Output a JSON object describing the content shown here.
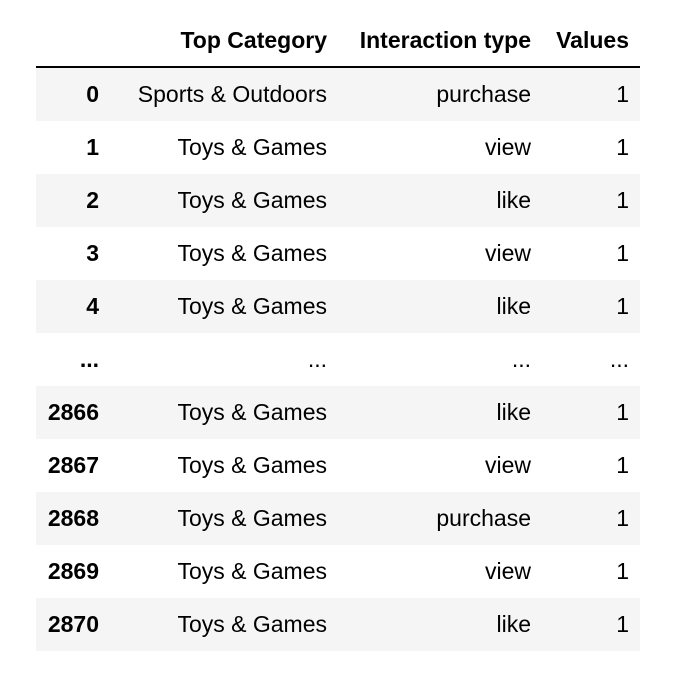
{
  "table": {
    "columns": [
      "",
      "Top Category",
      "Interaction type",
      "Values"
    ],
    "rows": [
      {
        "index": "0",
        "top_category": "Sports & Outdoors",
        "interaction_type": "purchase",
        "values": "1"
      },
      {
        "index": "1",
        "top_category": "Toys & Games",
        "interaction_type": "view",
        "values": "1"
      },
      {
        "index": "2",
        "top_category": "Toys & Games",
        "interaction_type": "like",
        "values": "1"
      },
      {
        "index": "3",
        "top_category": "Toys & Games",
        "interaction_type": "view",
        "values": "1"
      },
      {
        "index": "4",
        "top_category": "Toys & Games",
        "interaction_type": "like",
        "values": "1"
      },
      {
        "index": "...",
        "top_category": "...",
        "interaction_type": "...",
        "values": "..."
      },
      {
        "index": "2866",
        "top_category": "Toys & Games",
        "interaction_type": "like",
        "values": "1"
      },
      {
        "index": "2867",
        "top_category": "Toys & Games",
        "interaction_type": "view",
        "values": "1"
      },
      {
        "index": "2868",
        "top_category": "Toys & Games",
        "interaction_type": "purchase",
        "values": "1"
      },
      {
        "index": "2869",
        "top_category": "Toys & Games",
        "interaction_type": "view",
        "values": "1"
      },
      {
        "index": "2870",
        "top_category": "Toys & Games",
        "interaction_type": "like",
        "values": "1"
      }
    ]
  }
}
